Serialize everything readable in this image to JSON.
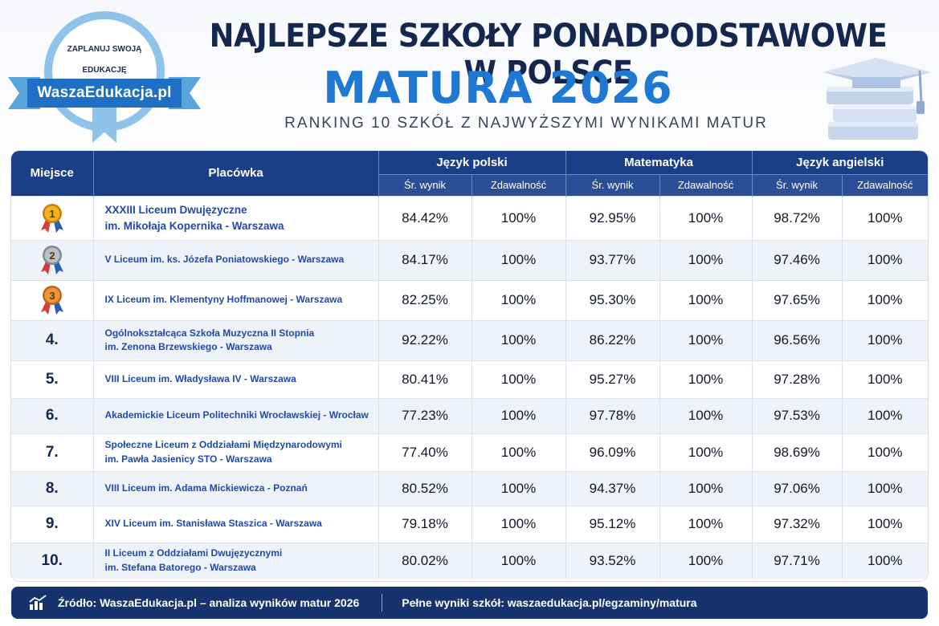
{
  "logo": {
    "tagline_top": "ZAPLANUJ SWOJĄ",
    "tagline_bottom": "EDUKACJĘ",
    "brand": "WaszaEdukacja.pl"
  },
  "header": {
    "title": "NAJLEPSZE SZKOŁY PONADPODSTAWOWE W POLSCE",
    "subtitle": "MATURA 2026",
    "caption": "RANKING 10 SZKÓŁ Z NAJWYŻSZYMI WYNIKAMI MATUR"
  },
  "table": {
    "col_place": "Miejsce",
    "col_school": "Placówka",
    "groups": [
      "Język polski",
      "Matematyka",
      "Język angielski"
    ],
    "sub_avg": "Śr. wynik",
    "sub_pass": "Zdawalność",
    "rows": [
      {
        "rank": "1",
        "medal": "gold",
        "school1": "XXXIII Liceum Dwujęzyczne",
        "school2": "im. Mikołaja Kopernika - Warszawa",
        "pl_avg": "84.42%",
        "pl_pass": "100%",
        "mat_avg": "92.95%",
        "mat_pass": "100%",
        "en_avg": "98.72%",
        "en_pass": "100%"
      },
      {
        "rank": "2",
        "medal": "silver",
        "school1": "V Liceum im. ks. Józefa Poniatowskiego - Warszawa",
        "school2": "",
        "pl_avg": "84.17%",
        "pl_pass": "100%",
        "mat_avg": "93.77%",
        "mat_pass": "100%",
        "en_avg": "97.46%",
        "en_pass": "100%"
      },
      {
        "rank": "3",
        "medal": "bronze",
        "school1": "IX Liceum im. Klementyny Hoffmanowej - Warszawa",
        "school2": "",
        "pl_avg": "82.25%",
        "pl_pass": "100%",
        "mat_avg": "95.30%",
        "mat_pass": "100%",
        "en_avg": "97.65%",
        "en_pass": "100%"
      },
      {
        "rank": "4.",
        "medal": "",
        "school1": "Ogólnokształcąca Szkoła Muzyczna II Stopnia",
        "school2": "im. Zenona Brzewskiego - Warszawa",
        "pl_avg": "92.22%",
        "pl_pass": "100%",
        "mat_avg": "86.22%",
        "mat_pass": "100%",
        "en_avg": "96.56%",
        "en_pass": "100%"
      },
      {
        "rank": "5.",
        "medal": "",
        "school1": "VIII Liceum im. Władysława IV - Warszawa",
        "school2": "",
        "pl_avg": "80.41%",
        "pl_pass": "100%",
        "mat_avg": "95.27%",
        "mat_pass": "100%",
        "en_avg": "97.28%",
        "en_pass": "100%"
      },
      {
        "rank": "6.",
        "medal": "",
        "school1": "Akademickie Liceum Politechniki Wrocławskiej - Wrocław",
        "school2": "",
        "pl_avg": "77.23%",
        "pl_pass": "100%",
        "mat_avg": "97.78%",
        "mat_pass": "100%",
        "en_avg": "97.53%",
        "en_pass": "100%"
      },
      {
        "rank": "7.",
        "medal": "",
        "school1": "Społeczne Liceum z Oddziałami Międzynarodowymi",
        "school2": "im. Pawła Jasienicy STO - Warszawa",
        "pl_avg": "77.40%",
        "pl_pass": "100%",
        "mat_avg": "96.09%",
        "mat_pass": "100%",
        "en_avg": "98.69%",
        "en_pass": "100%"
      },
      {
        "rank": "8.",
        "medal": "",
        "school1": "VIII Liceum im. Adama Mickiewicza - Poznań",
        "school2": "",
        "pl_avg": "80.52%",
        "pl_pass": "100%",
        "mat_avg": "94.37%",
        "mat_pass": "100%",
        "en_avg": "97.06%",
        "en_pass": "100%"
      },
      {
        "rank": "9.",
        "medal": "",
        "school1": "XIV Liceum im. Stanisława Staszica - Warszawa",
        "school2": "",
        "pl_avg": "79.18%",
        "pl_pass": "100%",
        "mat_avg": "95.12%",
        "mat_pass": "100%",
        "en_avg": "97.32%",
        "en_pass": "100%"
      },
      {
        "rank": "10.",
        "medal": "",
        "school1": "II Liceum z Oddziałami Dwujęzycznymi",
        "school2": "im. Stefana Batorego - Warszawa",
        "pl_avg": "80.02%",
        "pl_pass": "100%",
        "mat_avg": "93.52%",
        "mat_pass": "100%",
        "en_avg": "97.71%",
        "en_pass": "100%"
      }
    ]
  },
  "footer": {
    "source": "Źródło: WaszaEdukacja.pl – analiza wyników matur 2026",
    "full_results": "Pełne wyniki szkół: waszaedukacja.pl/egzaminy/matura",
    "icon": "bar-chart-icon"
  },
  "colors": {
    "navy": "#14284f",
    "accent_blue": "#1f78d1",
    "header_bg": "#1a3f86",
    "gold": "#f2b21c",
    "silver": "#aab2bd",
    "bronze": "#e8892f"
  }
}
